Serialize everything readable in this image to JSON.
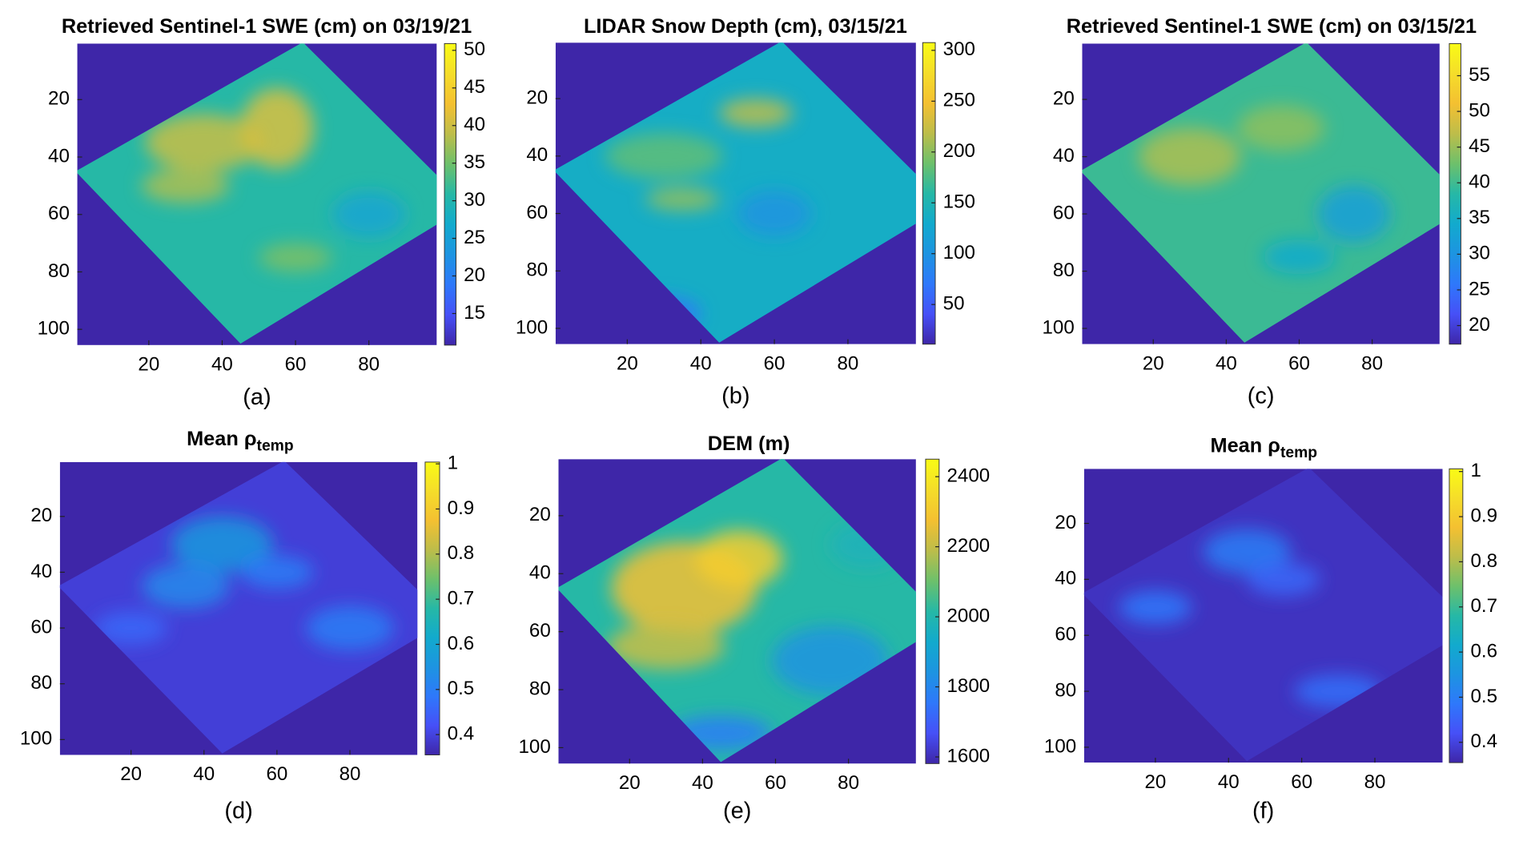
{
  "chart_data": [
    {
      "type": "heatmap",
      "title": "Retrieved Sentinel-1 SWE (cm) on 03/19/21",
      "caption": "(a)",
      "colormap": "parula",
      "xlim": [
        0.5,
        98.5
      ],
      "ylim": [
        0.5,
        105.5
      ],
      "y_reversed": true,
      "xticks": [
        20,
        40,
        60,
        80
      ],
      "yticks": [
        20,
        40,
        60,
        80,
        100
      ],
      "clim": [
        10.8,
        50.9
      ],
      "cticks": [
        15,
        20,
        25,
        30,
        35,
        40,
        45,
        50
      ]
    },
    {
      "type": "heatmap",
      "title": "LIDAR Snow Depth (cm), 03/15/21",
      "caption": "(b)",
      "colormap": "parula",
      "xlim": [
        0.5,
        98.5
      ],
      "ylim": [
        0.5,
        105.5
      ],
      "y_reversed": true,
      "xticks": [
        20,
        40,
        60,
        80
      ],
      "yticks": [
        20,
        40,
        60,
        80,
        100
      ],
      "clim": [
        11,
        307.6
      ],
      "cticks": [
        50,
        100,
        150,
        200,
        250,
        300
      ]
    },
    {
      "type": "heatmap",
      "title": "Retrieved Sentinel-1 SWE (cm) on 03/15/21",
      "caption": "(c)",
      "colormap": "parula",
      "xlim": [
        0.5,
        98.5
      ],
      "ylim": [
        0.5,
        105.5
      ],
      "y_reversed": true,
      "xticks": [
        20,
        40,
        60,
        80
      ],
      "yticks": [
        20,
        40,
        60,
        80,
        100
      ],
      "clim": [
        17.4,
        59.5
      ],
      "cticks": [
        20,
        25,
        30,
        35,
        40,
        45,
        50,
        55
      ]
    },
    {
      "type": "heatmap",
      "title": "Mean ρ",
      "title_subscript": "temp",
      "caption": "(d)",
      "colormap": "parula",
      "xlim": [
        0.5,
        98.5
      ],
      "ylim": [
        0.5,
        105.5
      ],
      "y_reversed": true,
      "xticks": [
        20,
        40,
        60,
        80
      ],
      "yticks": [
        20,
        40,
        60,
        80,
        100
      ],
      "clim": [
        0.355,
        1.004
      ],
      "cticks": [
        0.4,
        0.5,
        0.6,
        0.7,
        0.8,
        0.9,
        1
      ]
    },
    {
      "type": "heatmap",
      "title": "DEM (m)",
      "caption": "(e)",
      "colormap": "parula",
      "xlim": [
        0.5,
        98.5
      ],
      "ylim": [
        0.5,
        105.5
      ],
      "y_reversed": true,
      "xticks": [
        20,
        40,
        60,
        80
      ],
      "yticks": [
        20,
        40,
        60,
        80,
        100
      ],
      "clim": [
        1581,
        2450
      ],
      "cticks": [
        1600,
        1800,
        2000,
        2200,
        2400
      ]
    },
    {
      "type": "heatmap",
      "title": "Mean ρ",
      "title_subscript": "temp",
      "caption": "(f)",
      "colormap": "parula",
      "xlim": [
        0.5,
        98.5
      ],
      "ylim": [
        0.5,
        105.5
      ],
      "y_reversed": true,
      "xticks": [
        20,
        40,
        60,
        80
      ],
      "yticks": [
        20,
        40,
        60,
        80,
        100
      ],
      "clim": [
        0.355,
        1.006
      ],
      "cticks": [
        0.4,
        0.5,
        0.6,
        0.7,
        0.8,
        0.9,
        1
      ]
    }
  ]
}
